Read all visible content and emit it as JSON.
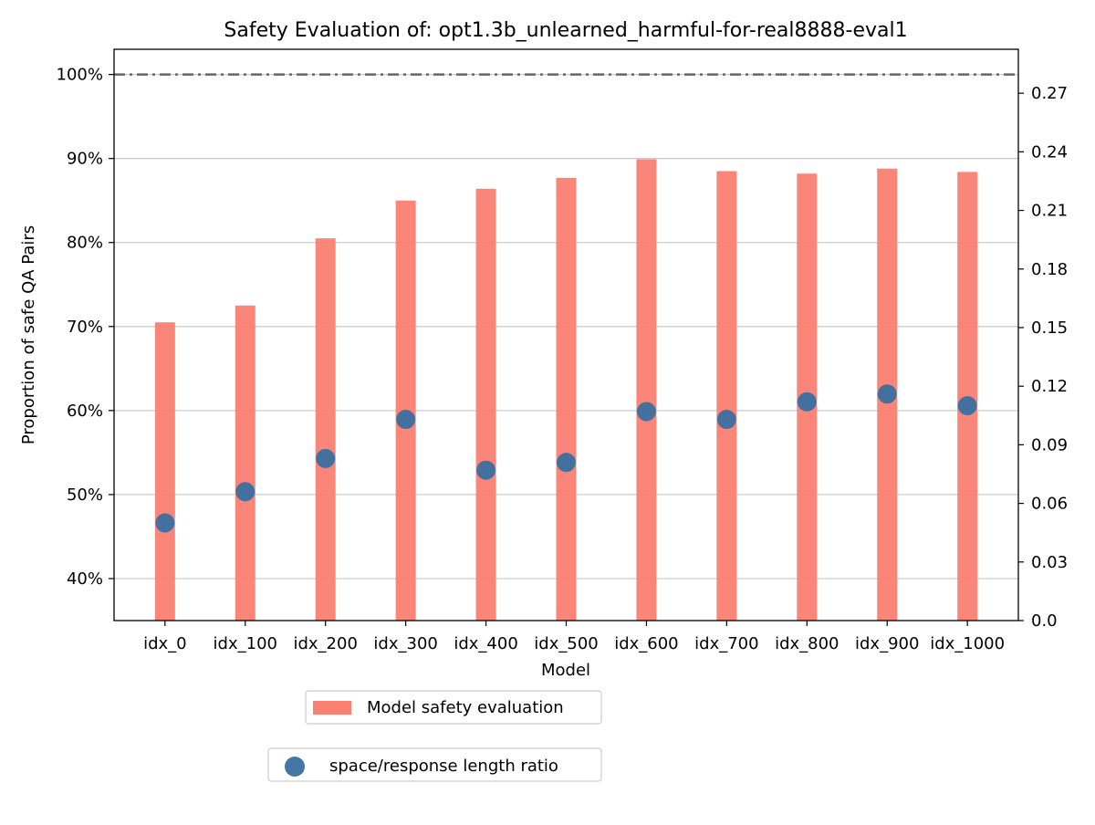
{
  "chart_data": {
    "type": "bar",
    "title": "Safety Evaluation of: opt1.3b_unlearned_harmful-for-real8888-eval1",
    "xlabel": "Model",
    "ylabel": "Proportion of safe QA Pairs",
    "categories": [
      "idx_0",
      "idx_100",
      "idx_200",
      "idx_300",
      "idx_400",
      "idx_500",
      "idx_600",
      "idx_700",
      "idx_800",
      "idx_900",
      "idx_1000"
    ],
    "series": [
      {
        "name": "Model safety evaluation",
        "kind": "bar",
        "axis": "left",
        "color": "#FA8072",
        "values": [
          70.5,
          72.5,
          80.5,
          85.0,
          86.4,
          87.7,
          89.9,
          88.5,
          88.2,
          88.8,
          88.4
        ]
      },
      {
        "name": "space/response length ratio",
        "kind": "scatter",
        "axis": "right",
        "color": "#3A6FA1",
        "values": [
          0.05,
          0.066,
          0.083,
          0.103,
          0.077,
          0.081,
          0.107,
          0.103,
          0.112,
          0.116,
          0.11
        ]
      }
    ],
    "reference_line": {
      "value": 100,
      "axis": "left",
      "style": "dash-dot",
      "color": "#666666"
    },
    "left_axis": {
      "ylim": [
        35,
        103
      ],
      "ticks": [
        40,
        50,
        60,
        70,
        80,
        90,
        100
      ],
      "tick_labels": [
        "40%",
        "50%",
        "60%",
        "70%",
        "80%",
        "90%",
        "100%"
      ],
      "grid": true
    },
    "right_axis": {
      "ylim": [
        0,
        0.2925
      ],
      "ticks": [
        0,
        0.03,
        0.06,
        0.09,
        0.12,
        0.15,
        0.18,
        0.21,
        0.24,
        0.27
      ],
      "tick_labels": [
        "0.0",
        "0.03",
        "0.06",
        "0.09",
        "0.12",
        "0.15",
        "0.18",
        "0.21",
        "0.24",
        "0.27"
      ]
    },
    "legend": {
      "placement": "below",
      "entries": [
        "Model safety evaluation",
        "space/response length ratio"
      ]
    }
  }
}
